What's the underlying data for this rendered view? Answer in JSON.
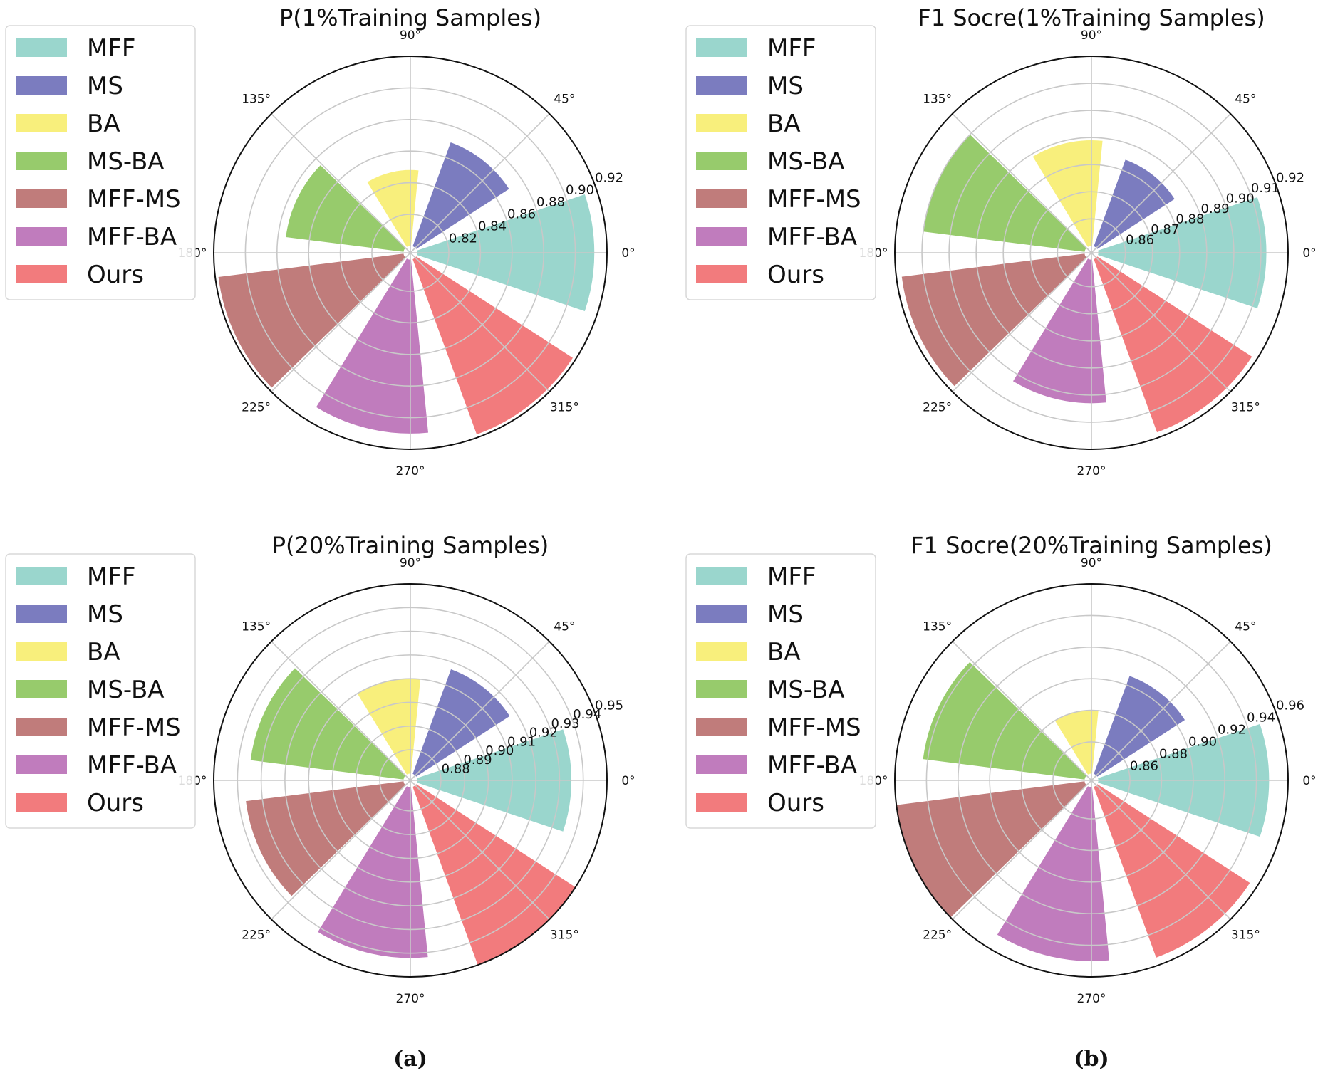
{
  "colors": {
    "MFF": "#9ad6cd",
    "MS": "#7b7cbf",
    "BA": "#f8ef7c",
    "MS-BA": "#97cb6c",
    "MFF-MS": "#c07c7b",
    "MFF-BA": "#c07cbd",
    "Ours": "#f27b7d"
  },
  "panel_labels": [
    "(a)",
    "(b)"
  ],
  "chart_data": [
    {
      "type": "polar-bar",
      "title": "P(1%Training Samples)",
      "angle_ticks": [
        "0°",
        "45°",
        "90°",
        "135°",
        "180°",
        "225°",
        "270°",
        "315°"
      ],
      "rticks": [
        "0.82",
        "0.84",
        "0.86",
        "0.88",
        "0.90",
        "0.92"
      ],
      "rlim": [
        0.8,
        0.92
      ],
      "categories": [
        "MFF",
        "MS",
        "BA",
        "MS-BA",
        "MFF-MS",
        "MFF-BA",
        "Ours"
      ],
      "angles_deg": [
        0,
        51.43,
        102.86,
        154.29,
        205.71,
        257.14,
        308.57
      ],
      "values": [
        0.912,
        0.87,
        0.848,
        0.875,
        0.918,
        0.91,
        0.918
      ],
      "legend": [
        "MFF",
        "MS",
        "BA",
        "MS-BA",
        "MFF-MS",
        "MFF-BA",
        "Ours"
      ]
    },
    {
      "type": "polar-bar",
      "title": "F1 Socre(1%Training Samples)",
      "angle_ticks": [
        "0°",
        "45°",
        "90°",
        "135°",
        "180°",
        "225°",
        "270°",
        "315°"
      ],
      "rticks": [
        "0.86",
        "0.87",
        "0.88",
        "0.89",
        "0.90",
        "0.91",
        "0.92"
      ],
      "rlim": [
        0.85,
        0.92
      ],
      "categories": [
        "MFF",
        "MS",
        "BA",
        "MS-BA",
        "MFF-MS",
        "MFF-BA",
        "Ours"
      ],
      "angles_deg": [
        0,
        51.43,
        102.86,
        154.29,
        205.71,
        257.14,
        308.57
      ],
      "values": [
        0.912,
        0.884,
        0.889,
        0.91,
        0.918,
        0.903,
        0.918
      ],
      "legend": [
        "MFF",
        "MS",
        "BA",
        "MS-BA",
        "MFF-MS",
        "MFF-BA",
        "Ours"
      ]
    },
    {
      "type": "polar-bar",
      "title": "P(20%Training Samples)",
      "angle_ticks": [
        "0°",
        "45°",
        "90°",
        "135°",
        "180°",
        "225°",
        "270°",
        "315°"
      ],
      "rticks": [
        "0.88",
        "0.89",
        "0.90",
        "0.91",
        "0.92",
        "0.93",
        "0.94",
        "0.95"
      ],
      "rlim": [
        0.87,
        0.95
      ],
      "categories": [
        "MFF",
        "MS",
        "BA",
        "MS-BA",
        "MFF-MS",
        "MFF-BA",
        "Ours"
      ],
      "angles_deg": [
        0,
        51.43,
        102.86,
        154.29,
        205.71,
        257.14,
        308.57
      ],
      "values": [
        0.935,
        0.917,
        0.91,
        0.935,
        0.937,
        0.942,
        0.95
      ],
      "legend": [
        "MFF",
        "MS",
        "BA",
        "MS-BA",
        "MFF-MS",
        "MFF-BA",
        "Ours"
      ]
    },
    {
      "type": "polar-bar",
      "title": "F1 Socre(20%Training Samples)",
      "angle_ticks": [
        "0°",
        "45°",
        "90°",
        "135°",
        "180°",
        "225°",
        "270°",
        "315°"
      ],
      "rticks": [
        "0.86",
        "0.88",
        "0.90",
        "0.92",
        "0.94",
        "0.96"
      ],
      "rlim": [
        0.84,
        0.96
      ],
      "categories": [
        "MFF",
        "MS",
        "BA",
        "MS-BA",
        "MFF-MS",
        "MFF-BA",
        "Ours"
      ],
      "angles_deg": [
        0,
        51.43,
        102.86,
        154.29,
        205.71,
        257.14,
        308.57
      ],
      "values": [
        0.948,
        0.906,
        0.88,
        0.943,
        0.96,
        0.95,
        0.955
      ],
      "legend": [
        "MFF",
        "MS",
        "BA",
        "MS-BA",
        "MFF-MS",
        "MFF-BA",
        "Ours"
      ]
    }
  ]
}
